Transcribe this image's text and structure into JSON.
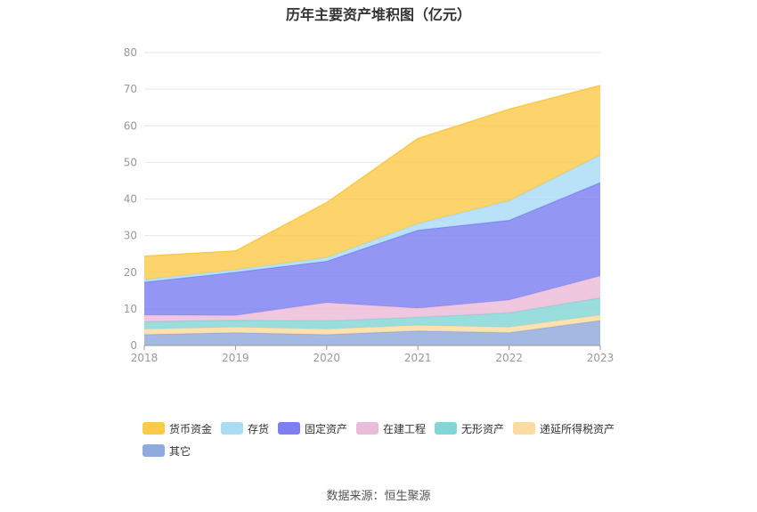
{
  "source_label": "数据来源：恒生聚源",
  "chart_data": {
    "type": "area",
    "stacked": true,
    "title": "历年主要资产堆积图（亿元）",
    "xlabel": "",
    "ylabel": "",
    "categories": [
      "2018",
      "2019",
      "2020",
      "2021",
      "2022",
      "2023"
    ],
    "ylim": [
      0,
      80
    ],
    "yticks": [
      0,
      10,
      20,
      30,
      40,
      50,
      60,
      70,
      80
    ],
    "grid": true,
    "legend_position": "bottom",
    "series": [
      {
        "name": "其它",
        "color": "#8faadc",
        "values": [
          3.0,
          3.5,
          3.0,
          4.0,
          3.5,
          6.8
        ]
      },
      {
        "name": "递延所得税资产",
        "color": "#fcdba0",
        "values": [
          1.5,
          1.5,
          1.5,
          1.5,
          1.5,
          1.5
        ]
      },
      {
        "name": "无形资产",
        "color": "#83d6d6",
        "values": [
          2.0,
          1.9,
          2.2,
          2.2,
          3.9,
          4.7
        ]
      },
      {
        "name": "在建工程",
        "color": "#ebbcd9",
        "values": [
          1.8,
          1.3,
          5.0,
          2.5,
          3.5,
          6.0
        ]
      },
      {
        "name": "固定资产",
        "color": "#7b7ff0",
        "values": [
          9.0,
          11.8,
          11.3,
          21.3,
          21.8,
          25.5
        ]
      },
      {
        "name": "存货",
        "color": "#aadcf6",
        "values": [
          0.7,
          0.7,
          1.0,
          1.8,
          5.3,
          7.5
        ]
      },
      {
        "name": "货币资金",
        "color": "#fcc94a",
        "values": [
          6.4,
          5.1,
          15.0,
          23.2,
          25.0,
          19.0
        ]
      }
    ],
    "legend_order": [
      "货币资金",
      "存货",
      "固定资产",
      "在建工程",
      "无形资产",
      "递延所得税资产",
      "其它"
    ]
  }
}
